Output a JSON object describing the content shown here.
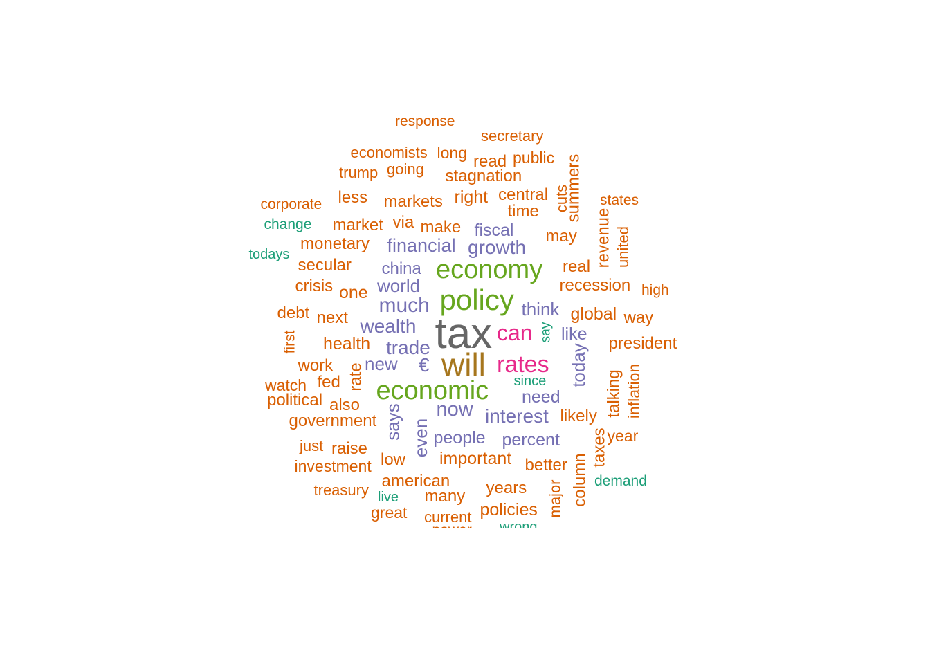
{
  "palette": {
    "gray": "#666666",
    "gold": "#A6761D",
    "green": "#66A61E",
    "pink": "#E7298A",
    "purple": "#7570B3",
    "orange": "#D95F02",
    "teal": "#1B9E77"
  },
  "words": [
    {
      "text": "tax",
      "color": "gray",
      "weight": 10
    },
    {
      "text": "will",
      "color": "gold",
      "weight": 8
    },
    {
      "text": "policy",
      "color": "green",
      "weight": 7
    },
    {
      "text": "economic",
      "color": "green",
      "weight": 7
    },
    {
      "text": "economy",
      "color": "green",
      "weight": 7
    },
    {
      "text": "rates",
      "color": "pink",
      "weight": 6
    },
    {
      "text": "can",
      "color": "pink",
      "weight": 6
    },
    {
      "text": "much",
      "color": "purple",
      "weight": 5
    },
    {
      "text": "growth",
      "color": "purple",
      "weight": 5
    },
    {
      "text": "financial",
      "color": "purple",
      "weight": 5
    },
    {
      "text": "wealth",
      "color": "purple",
      "weight": 5
    },
    {
      "text": "trade",
      "color": "purple",
      "weight": 5
    },
    {
      "text": "interest",
      "color": "purple",
      "weight": 5
    },
    {
      "text": "now",
      "color": "purple",
      "weight": 5
    },
    {
      "text": "need",
      "color": "purple",
      "weight": 4
    },
    {
      "text": "think",
      "color": "purple",
      "weight": 4
    },
    {
      "text": "fiscal",
      "color": "purple",
      "weight": 4
    },
    {
      "text": "world",
      "color": "purple",
      "weight": 4
    },
    {
      "text": "china",
      "color": "purple",
      "weight": 4
    },
    {
      "text": "new",
      "color": "purple",
      "weight": 4
    },
    {
      "text": "€",
      "color": "purple",
      "weight": 4
    },
    {
      "text": "people",
      "color": "purple",
      "weight": 4
    },
    {
      "text": "percent",
      "color": "purple",
      "weight": 4
    },
    {
      "text": "like",
      "color": "purple",
      "weight": 4
    },
    {
      "text": "today",
      "color": "purple",
      "weight": 4,
      "rotate": -90
    },
    {
      "text": "says",
      "color": "purple",
      "weight": 4,
      "rotate": -90
    },
    {
      "text": "even",
      "color": "purple",
      "weight": 4,
      "rotate": -90
    },
    {
      "text": "say",
      "color": "teal",
      "weight": 2,
      "rotate": -90
    },
    {
      "text": "since",
      "color": "teal",
      "weight": 2
    },
    {
      "text": "change",
      "color": "teal",
      "weight": 2
    },
    {
      "text": "todays",
      "color": "teal",
      "weight": 2
    },
    {
      "text": "demand",
      "color": "teal",
      "weight": 2
    },
    {
      "text": "live",
      "color": "teal",
      "weight": 2
    },
    {
      "text": "wrong",
      "color": "teal",
      "weight": 2
    },
    {
      "text": "response",
      "color": "orange",
      "weight": 2
    },
    {
      "text": "secretary",
      "color": "orange",
      "weight": 2
    },
    {
      "text": "economists",
      "color": "orange",
      "weight": 2
    },
    {
      "text": "long",
      "color": "orange",
      "weight": 2
    },
    {
      "text": "read",
      "color": "orange",
      "weight": 3
    },
    {
      "text": "public",
      "color": "orange",
      "weight": 2
    },
    {
      "text": "summers",
      "color": "orange",
      "weight": 3,
      "rotate": -90
    },
    {
      "text": "trump",
      "color": "orange",
      "weight": 2
    },
    {
      "text": "going",
      "color": "orange",
      "weight": 2
    },
    {
      "text": "stagnation",
      "color": "orange",
      "weight": 3
    },
    {
      "text": "corporate",
      "color": "orange",
      "weight": 2
    },
    {
      "text": "less",
      "color": "orange",
      "weight": 3
    },
    {
      "text": "markets",
      "color": "orange",
      "weight": 3
    },
    {
      "text": "right",
      "color": "orange",
      "weight": 3
    },
    {
      "text": "central",
      "color": "orange",
      "weight": 3
    },
    {
      "text": "cuts",
      "color": "orange",
      "weight": 3,
      "rotate": -90
    },
    {
      "text": "states",
      "color": "orange",
      "weight": 2
    },
    {
      "text": "time",
      "color": "orange",
      "weight": 3
    },
    {
      "text": "market",
      "color": "orange",
      "weight": 3
    },
    {
      "text": "via",
      "color": "orange",
      "weight": 3
    },
    {
      "text": "make",
      "color": "orange",
      "weight": 3
    },
    {
      "text": "revenue",
      "color": "orange",
      "weight": 3,
      "rotate": -90
    },
    {
      "text": "united",
      "color": "orange",
      "weight": 2,
      "rotate": -90
    },
    {
      "text": "may",
      "color": "orange",
      "weight": 3
    },
    {
      "text": "monetary",
      "color": "orange",
      "weight": 3
    },
    {
      "text": "secular",
      "color": "orange",
      "weight": 3
    },
    {
      "text": "real",
      "color": "orange",
      "weight": 3
    },
    {
      "text": "crisis",
      "color": "orange",
      "weight": 3
    },
    {
      "text": "one",
      "color": "orange",
      "weight": 3
    },
    {
      "text": "recession",
      "color": "orange",
      "weight": 3
    },
    {
      "text": "high",
      "color": "orange",
      "weight": 2
    },
    {
      "text": "debt",
      "color": "orange",
      "weight": 3
    },
    {
      "text": "next",
      "color": "orange",
      "weight": 3
    },
    {
      "text": "global",
      "color": "orange",
      "weight": 3
    },
    {
      "text": "way",
      "color": "orange",
      "weight": 3
    },
    {
      "text": "first",
      "color": "orange",
      "weight": 2,
      "rotate": -90
    },
    {
      "text": "health",
      "color": "orange",
      "weight": 3
    },
    {
      "text": "president",
      "color": "orange",
      "weight": 3
    },
    {
      "text": "work",
      "color": "orange",
      "weight": 3
    },
    {
      "text": "rate",
      "color": "orange",
      "weight": 3,
      "rotate": -90
    },
    {
      "text": "inflation",
      "color": "orange",
      "weight": 3,
      "rotate": -90
    },
    {
      "text": "watch",
      "color": "orange",
      "weight": 2
    },
    {
      "text": "fed",
      "color": "orange",
      "weight": 3
    },
    {
      "text": "talking",
      "color": "orange",
      "weight": 3,
      "rotate": -90
    },
    {
      "text": "political",
      "color": "orange",
      "weight": 3
    },
    {
      "text": "also",
      "color": "orange",
      "weight": 3
    },
    {
      "text": "government",
      "color": "orange",
      "weight": 3
    },
    {
      "text": "likely",
      "color": "orange",
      "weight": 3
    },
    {
      "text": "year",
      "color": "orange",
      "weight": 3
    },
    {
      "text": "taxes",
      "color": "orange",
      "weight": 3,
      "rotate": -90
    },
    {
      "text": "just",
      "color": "orange",
      "weight": 2
    },
    {
      "text": "raise",
      "color": "orange",
      "weight": 3
    },
    {
      "text": "important",
      "color": "orange",
      "weight": 3
    },
    {
      "text": "investment",
      "color": "orange",
      "weight": 3
    },
    {
      "text": "low",
      "color": "orange",
      "weight": 3
    },
    {
      "text": "better",
      "color": "orange",
      "weight": 3
    },
    {
      "text": "column",
      "color": "orange",
      "weight": 3,
      "rotate": -90
    },
    {
      "text": "american",
      "color": "orange",
      "weight": 3
    },
    {
      "text": "treasury",
      "color": "orange",
      "weight": 2
    },
    {
      "text": "many",
      "color": "orange",
      "weight": 3
    },
    {
      "text": "years",
      "color": "orange",
      "weight": 3
    },
    {
      "text": "major",
      "color": "orange",
      "weight": 2,
      "rotate": -90
    },
    {
      "text": "great",
      "color": "orange",
      "weight": 2
    },
    {
      "text": "current",
      "color": "orange",
      "weight": 2
    },
    {
      "text": "policies",
      "color": "orange",
      "weight": 3
    },
    {
      "text": "power",
      "color": "orange",
      "weight": 2
    }
  ]
}
